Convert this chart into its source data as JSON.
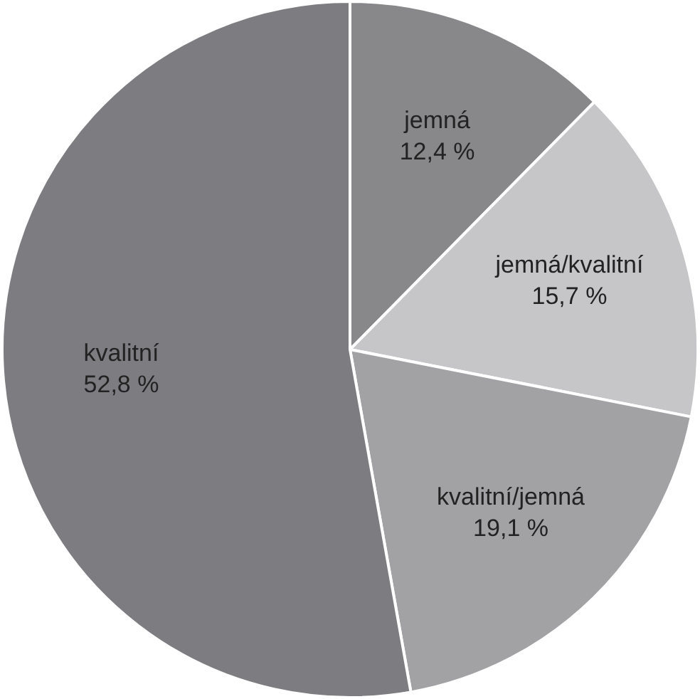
{
  "chart_data": {
    "type": "pie",
    "categories": [
      "jemná",
      "jemná/kvalitní",
      "kvalitní/jemná",
      "kvalitní"
    ],
    "values": [
      12.4,
      15.7,
      19.1,
      52.8
    ],
    "colors": [
      "#88888b",
      "#c6c6c8",
      "#a2a2a5",
      "#7d7d81"
    ],
    "value_labels": [
      "12,4 %",
      "15,7 %",
      "19,1 %",
      "52,8 %"
    ]
  }
}
